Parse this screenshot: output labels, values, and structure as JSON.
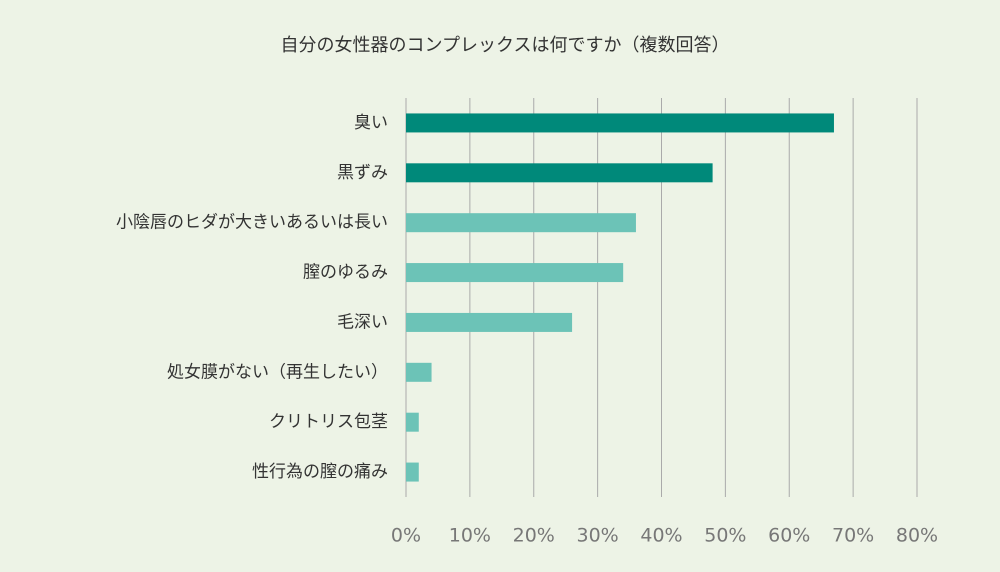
{
  "chart_data": {
    "type": "barh",
    "title": "自分の女性器のコンプレックスは何ですか（複数回答）",
    "categories": [
      "臭い",
      "黒ずみ",
      "小陰唇のヒダが大きいあるいは長い",
      "膣のゆるみ",
      "毛深い",
      "処女膜がない（再生したい）",
      "クリトリス包茎",
      "性行為の膣の痛み"
    ],
    "values": [
      67,
      48,
      36,
      34,
      26,
      4,
      2,
      2
    ],
    "colors": [
      "#00897a",
      "#00897a",
      "#6cc3b7",
      "#6cc3b7",
      "#6cc3b7",
      "#6cc3b7",
      "#6cc3b7",
      "#6cc3b7"
    ],
    "xlim": [
      0,
      80
    ],
    "xticks": [
      {
        "value": 0,
        "label": "0%"
      },
      {
        "value": 10,
        "label": "10%"
      },
      {
        "value": 20,
        "label": "20%"
      },
      {
        "value": 30,
        "label": "30%"
      },
      {
        "value": 40,
        "label": "40%"
      },
      {
        "value": 50,
        "label": "50%"
      },
      {
        "value": 60,
        "label": "60%"
      },
      {
        "value": 70,
        "label": "70%"
      },
      {
        "value": 80,
        "label": "80%"
      }
    ],
    "grid": true
  }
}
